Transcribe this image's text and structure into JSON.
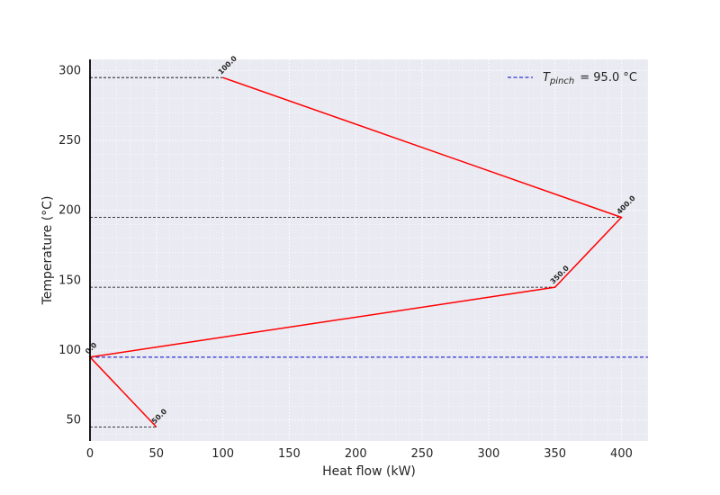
{
  "chart_data": {
    "type": "line",
    "xlabel": "Heat flow (kW)",
    "ylabel": "Temperature (°C)",
    "xlim": [
      0,
      420
    ],
    "ylim": [
      35,
      308
    ],
    "x_ticks": [
      0,
      50,
      100,
      150,
      200,
      250,
      300,
      350,
      400
    ],
    "y_ticks": [
      50,
      100,
      150,
      200,
      250,
      300
    ],
    "grid": true,
    "legend_placement": "top-right",
    "series": [
      {
        "x": [
          100,
          400,
          350,
          0,
          50
        ],
        "y": [
          295,
          195,
          145,
          95,
          45
        ],
        "point_labels": [
          "100.0",
          "400.0",
          "350.0",
          "0.0",
          "50.0"
        ],
        "color": "#ff0000"
      }
    ],
    "pinch": {
      "value": 95.0,
      "legend_symbol": "T",
      "legend_subscript": "pinch",
      "legend_value": "= 95.0 °C",
      "color": "#0000cc"
    },
    "reference_lines": {
      "color": "#000000",
      "style": "dashed"
    },
    "background": "#eaeaf2"
  }
}
